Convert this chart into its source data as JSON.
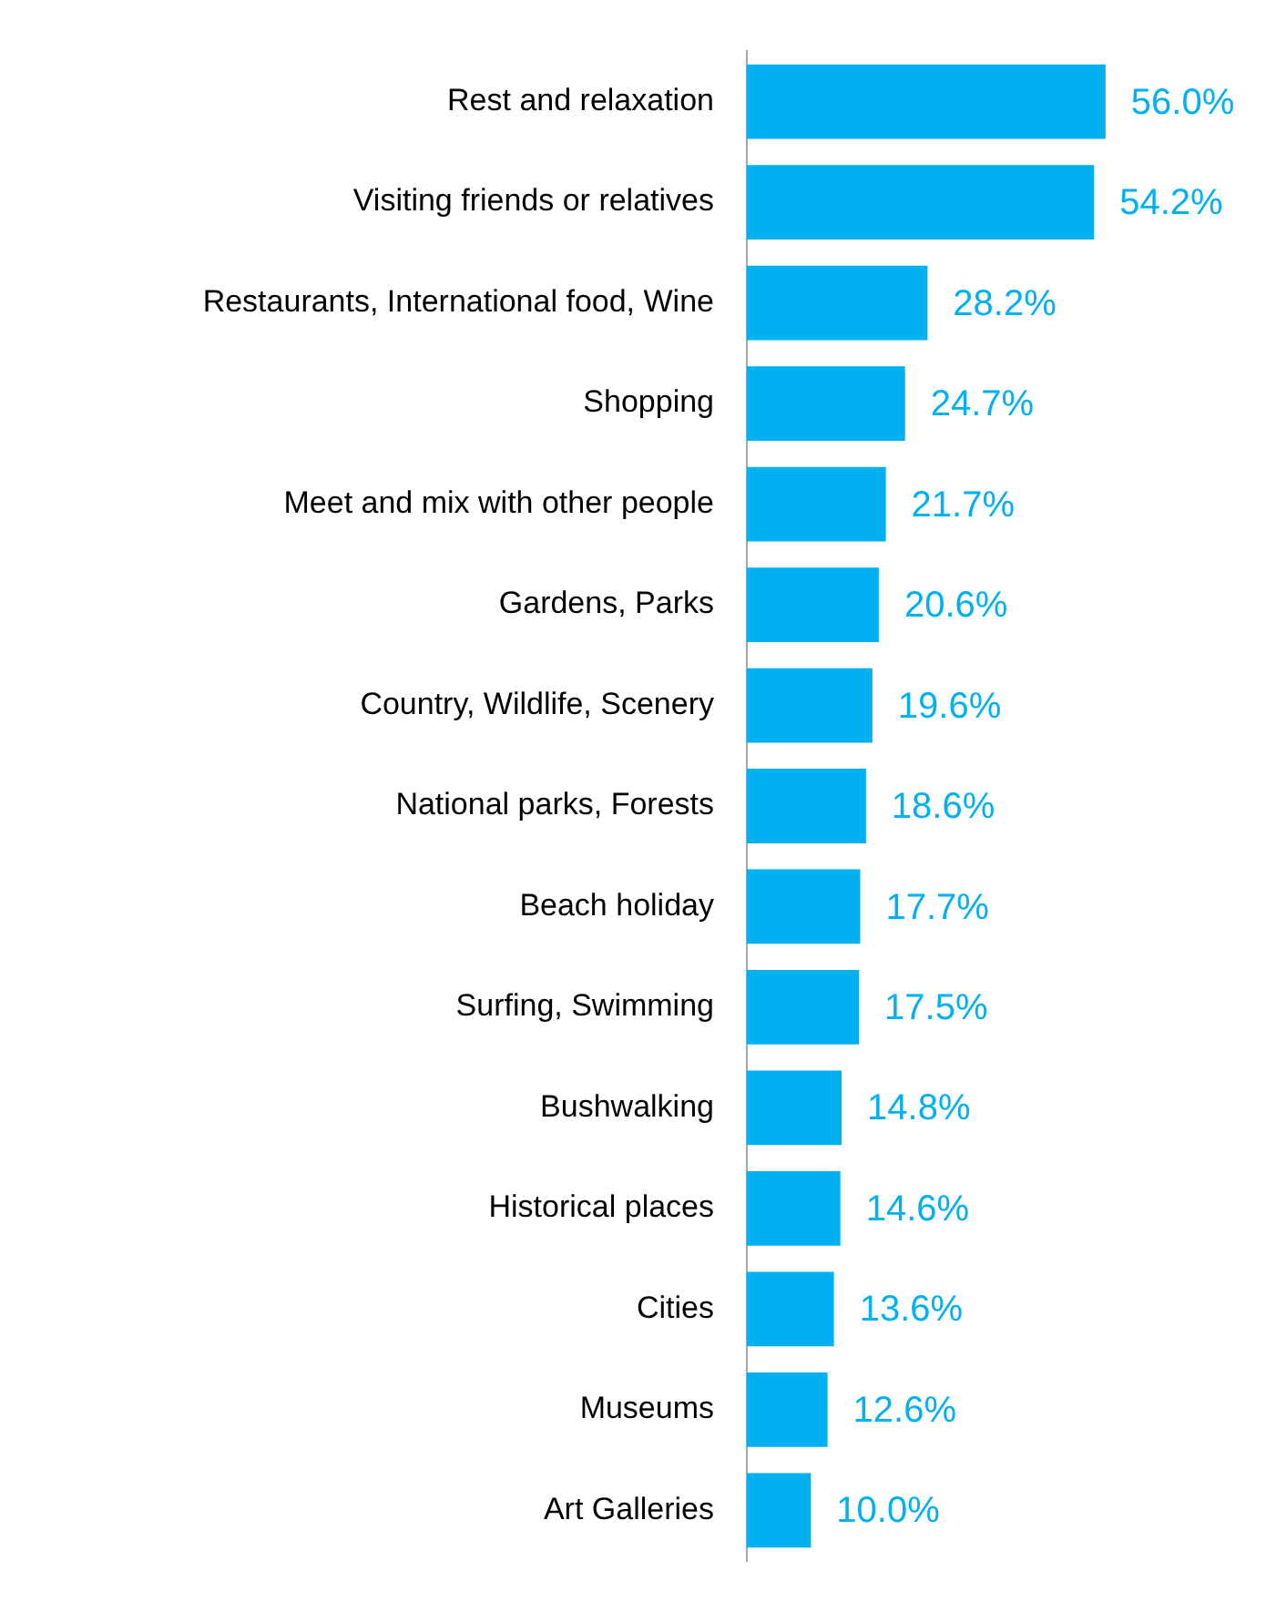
{
  "chart_data": {
    "type": "bar",
    "orientation": "horizontal",
    "categories": [
      "Rest and relaxation",
      "Visiting friends or relatives",
      "Restaurants, International food, Wine",
      "Shopping",
      "Meet and mix with other people",
      "Gardens, Parks",
      "Country, Wildlife, Scenery",
      "National parks, Forests",
      "Beach holiday",
      "Surfing, Swimming",
      "Bushwalking",
      "Historical places",
      "Cities",
      "Museums",
      "Art Galleries"
    ],
    "values": [
      56.0,
      54.2,
      28.2,
      24.7,
      21.7,
      20.6,
      19.6,
      18.6,
      17.7,
      17.5,
      14.8,
      14.6,
      13.6,
      12.6,
      10.0
    ],
    "value_labels": [
      "56.0%",
      "54.2%",
      "28.2%",
      "24.7%",
      "21.7%",
      "20.6%",
      "19.6%",
      "18.6%",
      "17.7%",
      "17.5%",
      "14.8%",
      "14.6%",
      "13.6%",
      "12.6%",
      "10.0%"
    ],
    "color": "#00b0f0",
    "grid": false,
    "legend": false
  }
}
